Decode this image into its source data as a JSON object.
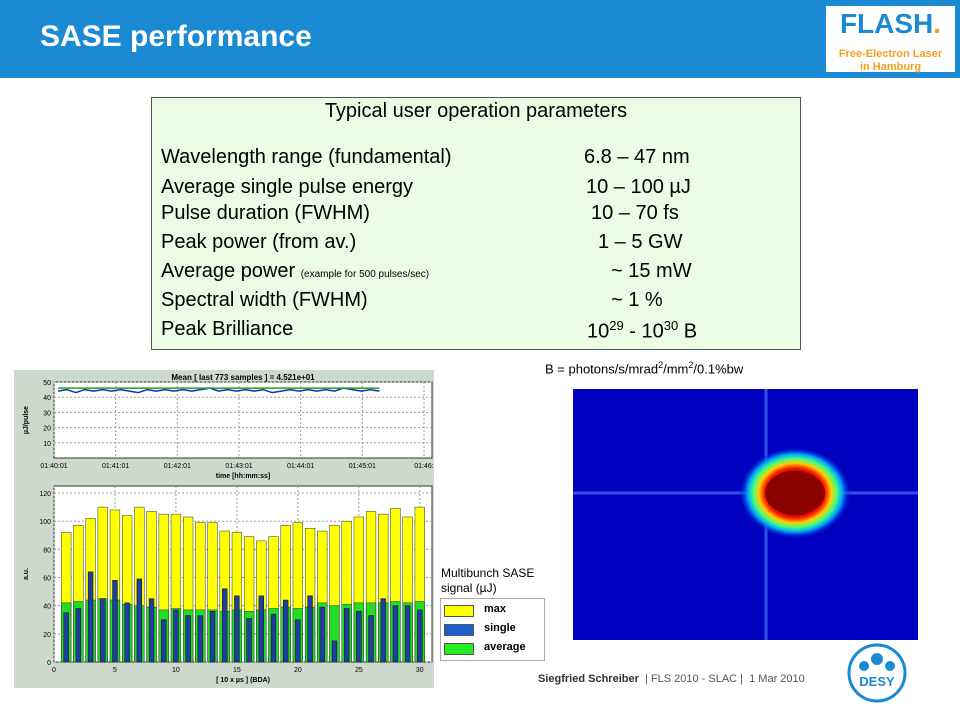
{
  "header": {
    "title": "SASE performance"
  },
  "logo": {
    "main": "FLASH",
    "dot": ".",
    "line1": "Free-Electron Laser",
    "line2": "in Hamburg"
  },
  "params": {
    "title": "Typical user operation parameters",
    "rows": [
      {
        "label": "Wavelength range (fundamental)",
        "note": "",
        "value": "6.8 – 47 nm"
      },
      {
        "label": "Average single pulse energy",
        "note": "",
        "value": "10 – 100 µJ"
      },
      {
        "label": "Pulse duration (FWHM)",
        "note": "",
        "value": "10 – 70 fs"
      },
      {
        "label": "Peak power (from av.)",
        "note": "",
        "value": "1 – 5 GW"
      },
      {
        "label": "Average power ",
        "note": "(example for 500 pulses/sec)",
        "value": "~ 15 mW"
      },
      {
        "label": "Spectral width (FWHM)",
        "note": "",
        "value": "~ 1 %"
      },
      {
        "label": "Peak Brilliance",
        "note": "",
        "value": ""
      }
    ],
    "brilliance": {
      "base1": "10",
      "exp1": "29",
      "sep": " - ",
      "base2": "10",
      "exp2": "30",
      "unit": " B"
    }
  },
  "brilliance_unit": {
    "p1": "B = photons/s/mrad",
    "e1": "2",
    "p2": "/mm",
    "e2": "2",
    "p3": "/0.1%bw"
  },
  "plot_annotation": {
    "line1": "Multibunch SASE",
    "line2": "signal (µJ)"
  },
  "legend": [
    {
      "label": "max",
      "color": "#ffff00"
    },
    {
      "label": "single",
      "color": "#1e5fd0"
    },
    {
      "label": "average",
      "color": "#22ee22"
    }
  ],
  "chart_data": [
    {
      "type": "line",
      "title": "Mean [ last 773 samples ] = 4.521e+01",
      "xlabel": "time [hh:mm:ss]",
      "ylabel": "µJ/pulse",
      "x_ticks": [
        "01:40:01",
        "01:41:01",
        "01:42:01",
        "01:43:01",
        "01:44:01",
        "01:45:01",
        "01:46:"
      ],
      "y_ticks": [
        10,
        20,
        30,
        40,
        50
      ],
      "ylim": [
        0,
        50
      ],
      "grid": true,
      "series": [
        {
          "values": [
            44,
            45,
            43,
            45,
            44,
            45,
            44,
            45,
            44,
            43,
            45,
            44,
            45,
            44,
            45,
            44,
            45,
            46,
            44,
            45,
            44,
            45,
            44,
            45,
            43,
            44,
            45,
            44,
            45,
            44,
            45,
            44,
            46,
            45,
            44,
            45,
            44
          ]
        },
        {
          "values": [
            46,
            46,
            46,
            46,
            46,
            46,
            46,
            46,
            46,
            46,
            46,
            46,
            46,
            46,
            46,
            46,
            46,
            46,
            46,
            46,
            46,
            46,
            46,
            46,
            46,
            46,
            46,
            46,
            46,
            46,
            46,
            46,
            46,
            46,
            46,
            46,
            46
          ]
        }
      ]
    },
    {
      "type": "bar",
      "title": "",
      "xlabel": "[ 10 x µs ] (BDA)",
      "ylabel": "a.u.",
      "x_ticks": [
        0,
        5,
        10,
        15,
        20,
        25,
        30
      ],
      "y_ticks": [
        0,
        20,
        40,
        60,
        80,
        100,
        120
      ],
      "xlim": [
        0,
        31
      ],
      "ylim": [
        0,
        125
      ],
      "grid": true,
      "x": [
        1,
        2,
        3,
        4,
        5,
        6,
        7,
        8,
        9,
        10,
        11,
        12,
        13,
        14,
        15,
        16,
        17,
        18,
        19,
        20,
        21,
        22,
        23,
        24,
        25,
        26,
        27,
        28,
        29,
        30
      ],
      "series": [
        {
          "name": "max",
          "values": [
            92,
            97,
            102,
            110,
            108,
            104,
            110,
            107,
            105,
            105,
            103,
            99,
            99,
            93,
            92,
            89,
            86,
            89,
            97,
            99,
            95,
            93,
            97,
            100,
            103,
            107,
            105,
            109,
            103,
            110
          ]
        },
        {
          "name": "single",
          "values": [
            35,
            38,
            64,
            45,
            58,
            42,
            59,
            45,
            30,
            37,
            33,
            33,
            36,
            52,
            47,
            31,
            47,
            34,
            44,
            30,
            47,
            39,
            15,
            38,
            36,
            33,
            45,
            40,
            40,
            37
          ]
        },
        {
          "name": "average",
          "values": [
            42,
            43,
            44,
            45,
            44,
            41,
            40,
            39,
            37,
            38,
            37,
            37,
            37,
            36,
            37,
            36,
            37,
            38,
            39,
            38,
            39,
            42,
            40,
            41,
            42,
            42,
            42,
            43,
            42,
            43
          ]
        }
      ]
    }
  ]
}
